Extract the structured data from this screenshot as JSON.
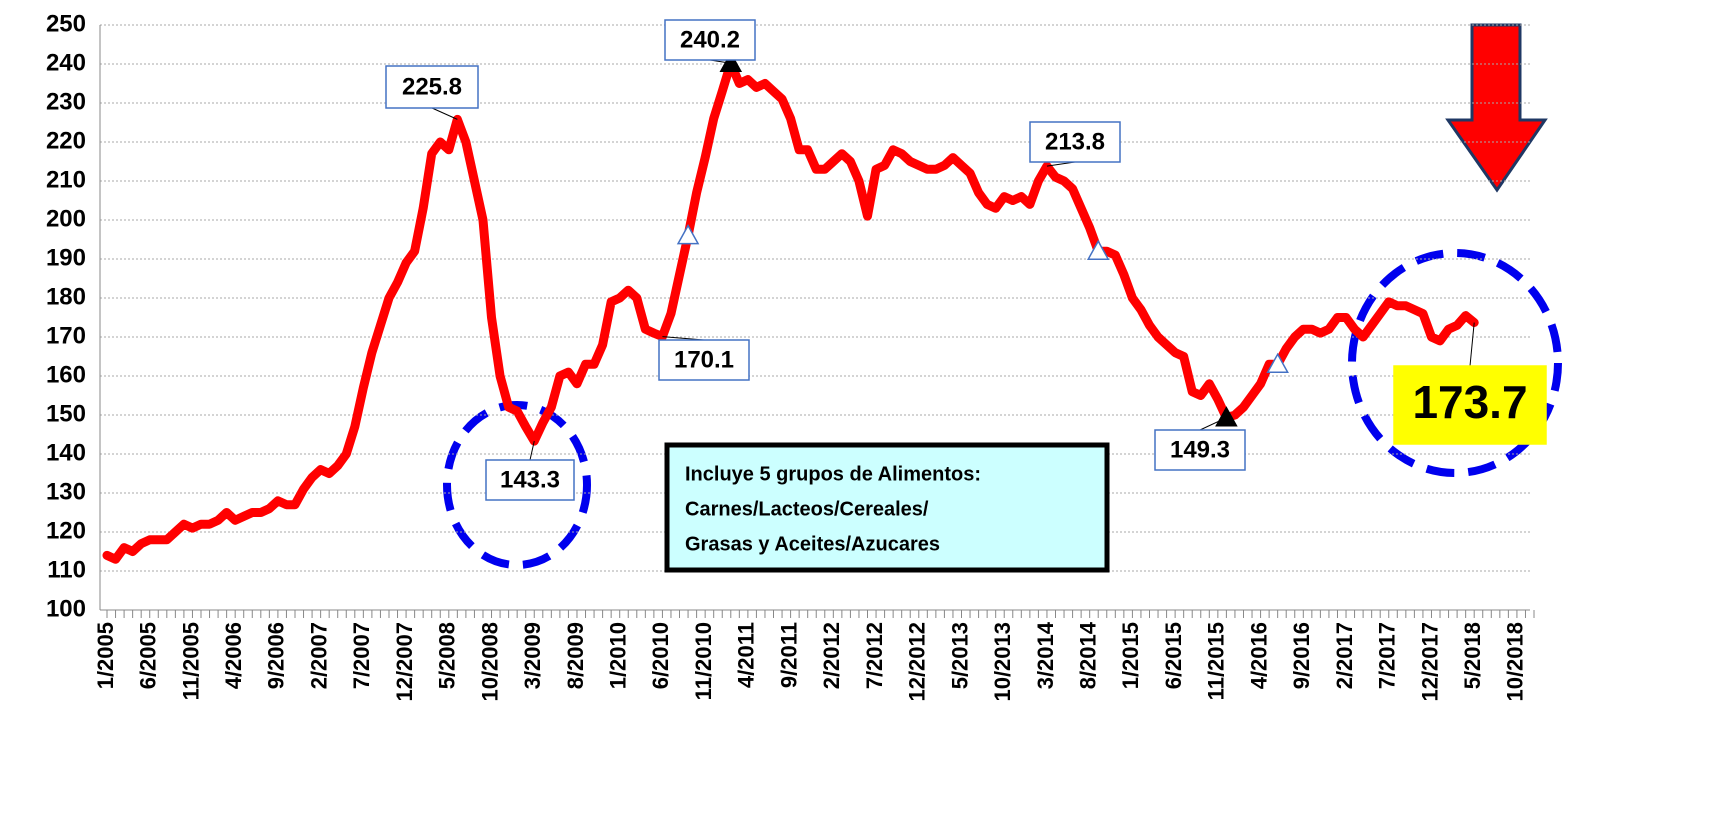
{
  "chart_data": {
    "type": "line",
    "categories": [
      "1/2005",
      null,
      null,
      null,
      null,
      "6/2005",
      null,
      null,
      null,
      null,
      "11/2005",
      null,
      null,
      null,
      null,
      "4/2006",
      null,
      null,
      null,
      null,
      "9/2006",
      null,
      null,
      null,
      null,
      "2/2007",
      null,
      null,
      null,
      null,
      "7/2007",
      null,
      null,
      null,
      null,
      "12/2007",
      null,
      null,
      null,
      null,
      "5/2008",
      null,
      null,
      null,
      null,
      "10/2008",
      null,
      null,
      null,
      null,
      "3/2009",
      null,
      null,
      null,
      null,
      "8/2009",
      null,
      null,
      null,
      null,
      "1/2010",
      null,
      null,
      null,
      null,
      "6/2010",
      null,
      null,
      null,
      null,
      "11/2010",
      null,
      null,
      null,
      null,
      "4/2011",
      null,
      null,
      null,
      null,
      "9/2011",
      null,
      null,
      null,
      null,
      "2/2012",
      null,
      null,
      null,
      null,
      "7/2012",
      null,
      null,
      null,
      null,
      "12/2012",
      null,
      null,
      null,
      null,
      "5/2013",
      null,
      null,
      null,
      null,
      "10/2013",
      null,
      null,
      null,
      null,
      "3/2014",
      null,
      null,
      null,
      null,
      "8/2014",
      null,
      null,
      null,
      null,
      "1/2015",
      null,
      null,
      null,
      null,
      "6/2015",
      null,
      null,
      null,
      null,
      "11/2015",
      null,
      null,
      null,
      null,
      "4/2016",
      null,
      null,
      null,
      null,
      "9/2016",
      null,
      null,
      null,
      null,
      "2/2017",
      null,
      null,
      null,
      null,
      "7/2017",
      null,
      null,
      null,
      null,
      "12/2017",
      null,
      null,
      null,
      null,
      "5/2018",
      null,
      null,
      null,
      null,
      "10/2018",
      null,
      null
    ],
    "series": [
      {
        "color": "#ff0000",
        "values": [
          114,
          113,
          116,
          115,
          117,
          118,
          118,
          118,
          120,
          122,
          121,
          122,
          122,
          123,
          125,
          123,
          124,
          125,
          125,
          126,
          128,
          127,
          127,
          131,
          134,
          136,
          135,
          137,
          140,
          147,
          157,
          166,
          173,
          180,
          184,
          189,
          192,
          203,
          217,
          220,
          218,
          225.8,
          220,
          210,
          200,
          175,
          160,
          152,
          151,
          147,
          143.3,
          148,
          152,
          160,
          161,
          158,
          163,
          163,
          168,
          179,
          180,
          182,
          180,
          172,
          171,
          170.1,
          176,
          186,
          196,
          207,
          216,
          226,
          233,
          240.2,
          235,
          236,
          234,
          235,
          233,
          231,
          226,
          218,
          218,
          213,
          213,
          215,
          217,
          215,
          210,
          201,
          213,
          214,
          218,
          217,
          215,
          214,
          213,
          213,
          214,
          216,
          214,
          212,
          207,
          204,
          203,
          206,
          205,
          206,
          204,
          210,
          213.8,
          211,
          210,
          208,
          203,
          198,
          192,
          192,
          191,
          186,
          180,
          177,
          173,
          170,
          168,
          166,
          165,
          156,
          155,
          158,
          154,
          149.3,
          150,
          152,
          155,
          158,
          163,
          163,
          167,
          170,
          172,
          172,
          171,
          172,
          175,
          175,
          172,
          170,
          173,
          176,
          179,
          178,
          178,
          177,
          176,
          170,
          169,
          172,
          173,
          175.5,
          173.7,
          null,
          null,
          null,
          null,
          null,
          null,
          null
        ]
      }
    ],
    "ylim": [
      100,
      250
    ],
    "yticks": [
      100,
      110,
      120,
      130,
      140,
      150,
      160,
      170,
      180,
      190,
      200,
      210,
      220,
      230,
      240,
      250
    ],
    "grid": true,
    "annotation": [
      "Incluye 5 grupos de Alimentos:",
      "Carnes/Lacteos/Cereales/",
      "Grasas y Aceites/Azucares"
    ]
  }
}
